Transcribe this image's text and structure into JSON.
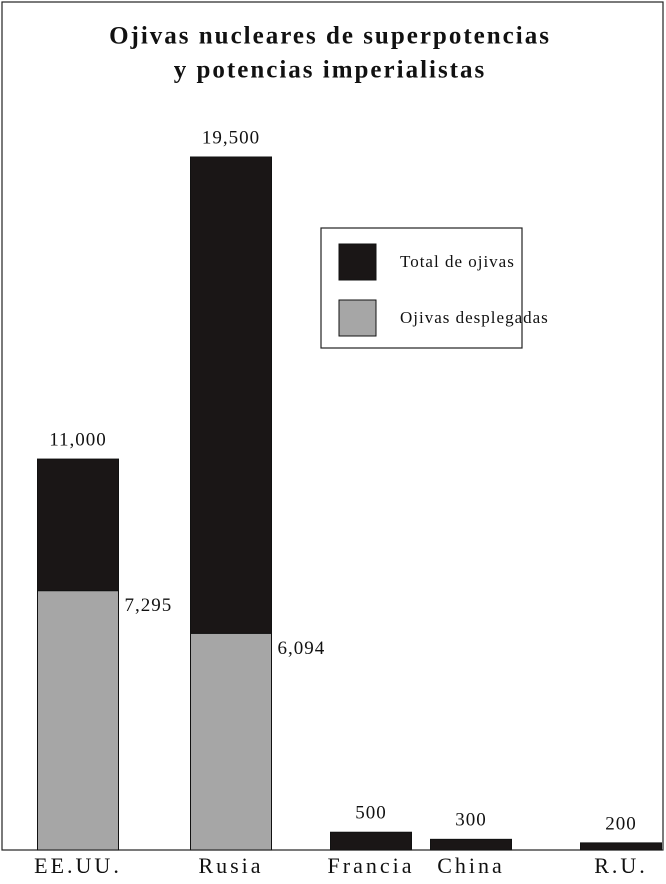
{
  "chart_data": {
    "type": "bar",
    "title": [
      "Ojivas nucleares de superpotencias",
      "y potencias imperialistas"
    ],
    "categories": [
      "EE.UU.",
      "Rusia",
      "Francia",
      "China",
      "R.U."
    ],
    "series": [
      {
        "name": "Total de ojivas",
        "color": "#1a1616",
        "values": [
          11000,
          19500,
          500,
          300,
          200
        ],
        "value_labels": [
          "11,000",
          "19,500",
          "500",
          "300",
          "200"
        ]
      },
      {
        "name": "Ojivas desplegadas",
        "color": "#a6a6a6",
        "values": [
          7295,
          6094,
          null,
          null,
          null
        ],
        "value_labels": [
          "7,295",
          "6,094",
          null,
          null,
          null
        ]
      }
    ],
    "overlap": true,
    "legend": "upper right"
  }
}
